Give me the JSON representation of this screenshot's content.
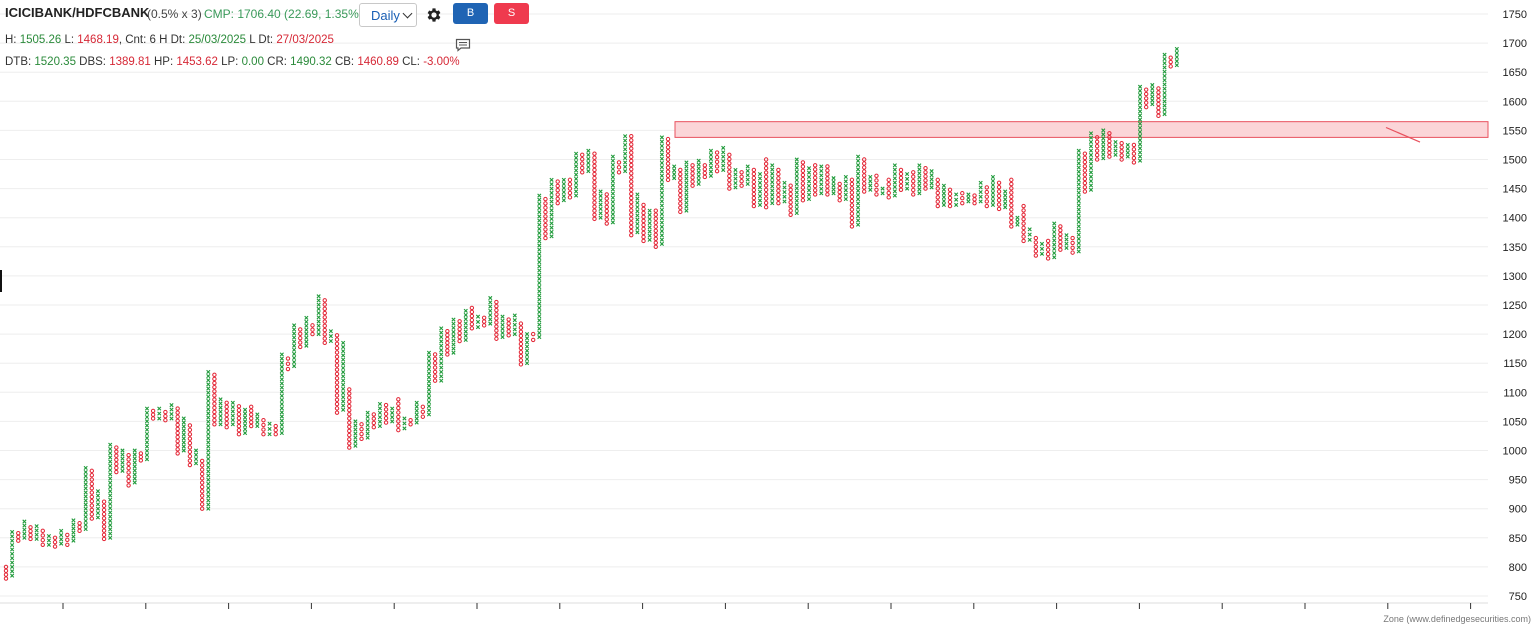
{
  "header": {
    "symbol": "ICICIBANK/HDFCBANK",
    "box": "(0.5% x 3)",
    "cmp": "CMP: 1706.40 (22.69, 1.35%)",
    "timeframe": "Daily",
    "buy_label": "B",
    "sell_label": "S"
  },
  "stats_line1": [
    {
      "text": "H: ",
      "c": "k"
    },
    {
      "text": "1505.26",
      "c": "g"
    },
    {
      "text": " L: ",
      "c": "k"
    },
    {
      "text": "1468.19",
      "c": "r"
    },
    {
      "text": ", Cnt: 6 H Dt: ",
      "c": "k"
    },
    {
      "text": "25/03/2025",
      "c": "g"
    },
    {
      "text": " L Dt: ",
      "c": "k"
    },
    {
      "text": "27/03/2025",
      "c": "r"
    }
  ],
  "stats_line2": [
    {
      "text": "DTB: ",
      "c": "k"
    },
    {
      "text": "1520.35",
      "c": "g"
    },
    {
      "text": " DBS: ",
      "c": "k"
    },
    {
      "text": "1389.81",
      "c": "r"
    },
    {
      "text": " HP: ",
      "c": "k"
    },
    {
      "text": "1453.62",
      "c": "r"
    },
    {
      "text": " LP: ",
      "c": "k"
    },
    {
      "text": "0.00",
      "c": "g"
    },
    {
      "text": " CR: ",
      "c": "k"
    },
    {
      "text": "1490.32",
      "c": "g"
    },
    {
      "text": " CB: ",
      "c": "k"
    },
    {
      "text": "1460.89",
      "c": "r"
    },
    {
      "text": " CL: ",
      "c": "k"
    },
    {
      "text": "-3.00%",
      "c": "r"
    }
  ],
  "credit": "Zone (www.definedgesecurities.com)",
  "colors": {
    "x": "#1f9a3a",
    "o": "#e32636",
    "zone_fill": "#fbd5d8",
    "zone_stroke": "#e8515e",
    "grid": "#eeeeee"
  },
  "icons": [
    "gear-icon",
    "comment-icon",
    "chevron-down-icon"
  ],
  "chart_data": {
    "type": "point-and-figure",
    "y_range": [
      750,
      1750
    ],
    "y_ticks": [
      750,
      800,
      850,
      900,
      950,
      1000,
      1050,
      1100,
      1150,
      1200,
      1250,
      1300,
      1350,
      1400,
      1450,
      1500,
      1550,
      1600,
      1650,
      1700,
      1750
    ],
    "zone": {
      "low": 1538,
      "high": 1565
    },
    "columns": [
      {
        "t": "O",
        "h": 800,
        "l": 780
      },
      {
        "t": "X",
        "h": 860,
        "l": 785
      },
      {
        "t": "O",
        "h": 858,
        "l": 845
      },
      {
        "t": "X",
        "h": 878,
        "l": 850
      },
      {
        "t": "O",
        "h": 868,
        "l": 848
      },
      {
        "t": "X",
        "h": 870,
        "l": 848
      },
      {
        "t": "O",
        "h": 862,
        "l": 838
      },
      {
        "t": "X",
        "h": 853,
        "l": 838
      },
      {
        "t": "O",
        "h": 850,
        "l": 835
      },
      {
        "t": "X",
        "h": 862,
        "l": 840
      },
      {
        "t": "O",
        "h": 855,
        "l": 838
      },
      {
        "t": "X",
        "h": 880,
        "l": 845
      },
      {
        "t": "O",
        "h": 875,
        "l": 862
      },
      {
        "t": "X",
        "h": 970,
        "l": 865
      },
      {
        "t": "O",
        "h": 965,
        "l": 883
      },
      {
        "t": "X",
        "h": 930,
        "l": 885
      },
      {
        "t": "O",
        "h": 912,
        "l": 848
      },
      {
        "t": "X",
        "h": 1010,
        "l": 850
      },
      {
        "t": "O",
        "h": 1005,
        "l": 963
      },
      {
        "t": "X",
        "h": 1000,
        "l": 965
      },
      {
        "t": "O",
        "h": 992,
        "l": 940
      },
      {
        "t": "X",
        "h": 1000,
        "l": 945
      },
      {
        "t": "O",
        "h": 995,
        "l": 983
      },
      {
        "t": "X",
        "h": 1072,
        "l": 985
      },
      {
        "t": "O",
        "h": 1068,
        "l": 1055
      },
      {
        "t": "X",
        "h": 1072,
        "l": 1055
      },
      {
        "t": "O",
        "h": 1066,
        "l": 1052
      },
      {
        "t": "X",
        "h": 1078,
        "l": 1055
      },
      {
        "t": "O",
        "h": 1072,
        "l": 995
      },
      {
        "t": "X",
        "h": 1055,
        "l": 1000
      },
      {
        "t": "O",
        "h": 1043,
        "l": 975
      },
      {
        "t": "X",
        "h": 1000,
        "l": 978
      },
      {
        "t": "O",
        "h": 982,
        "l": 900
      },
      {
        "t": "X",
        "h": 1135,
        "l": 900
      },
      {
        "t": "O",
        "h": 1130,
        "l": 1045
      },
      {
        "t": "X",
        "h": 1088,
        "l": 1045
      },
      {
        "t": "O",
        "h": 1082,
        "l": 1040
      },
      {
        "t": "X",
        "h": 1082,
        "l": 1045
      },
      {
        "t": "O",
        "h": 1076,
        "l": 1028
      },
      {
        "t": "X",
        "h": 1070,
        "l": 1030
      },
      {
        "t": "O",
        "h": 1075,
        "l": 1042
      },
      {
        "t": "X",
        "h": 1062,
        "l": 1042
      },
      {
        "t": "O",
        "h": 1052,
        "l": 1028
      },
      {
        "t": "X",
        "h": 1046,
        "l": 1028
      },
      {
        "t": "O",
        "h": 1042,
        "l": 1028
      },
      {
        "t": "X",
        "h": 1165,
        "l": 1030
      },
      {
        "t": "O",
        "h": 1158,
        "l": 1140
      },
      {
        "t": "X",
        "h": 1215,
        "l": 1145
      },
      {
        "t": "O",
        "h": 1208,
        "l": 1178
      },
      {
        "t": "X",
        "h": 1228,
        "l": 1180
      },
      {
        "t": "O",
        "h": 1215,
        "l": 1200
      },
      {
        "t": "X",
        "h": 1265,
        "l": 1200
      },
      {
        "t": "O",
        "h": 1258,
        "l": 1185
      },
      {
        "t": "X",
        "h": 1205,
        "l": 1188
      },
      {
        "t": "O",
        "h": 1198,
        "l": 1065
      },
      {
        "t": "X",
        "h": 1185,
        "l": 1070
      },
      {
        "t": "O",
        "h": 1105,
        "l": 1005
      },
      {
        "t": "X",
        "h": 1050,
        "l": 1008
      },
      {
        "t": "O",
        "h": 1045,
        "l": 1020
      },
      {
        "t": "X",
        "h": 1065,
        "l": 1022
      },
      {
        "t": "O",
        "h": 1062,
        "l": 1040
      },
      {
        "t": "X",
        "h": 1080,
        "l": 1042
      },
      {
        "t": "O",
        "h": 1078,
        "l": 1048
      },
      {
        "t": "X",
        "h": 1072,
        "l": 1050
      },
      {
        "t": "O",
        "h": 1088,
        "l": 1035
      },
      {
        "t": "X",
        "h": 1055,
        "l": 1038
      },
      {
        "t": "O",
        "h": 1052,
        "l": 1045
      },
      {
        "t": "X",
        "h": 1082,
        "l": 1048
      },
      {
        "t": "O",
        "h": 1075,
        "l": 1058
      },
      {
        "t": "X",
        "h": 1168,
        "l": 1062
      },
      {
        "t": "O",
        "h": 1165,
        "l": 1120
      },
      {
        "t": "X",
        "h": 1210,
        "l": 1120
      },
      {
        "t": "O",
        "h": 1205,
        "l": 1165
      },
      {
        "t": "X",
        "h": 1225,
        "l": 1168
      },
      {
        "t": "O",
        "h": 1222,
        "l": 1188
      },
      {
        "t": "X",
        "h": 1240,
        "l": 1190
      },
      {
        "t": "O",
        "h": 1245,
        "l": 1210
      },
      {
        "t": "X",
        "h": 1230,
        "l": 1212
      },
      {
        "t": "O",
        "h": 1228,
        "l": 1215
      },
      {
        "t": "X",
        "h": 1262,
        "l": 1218
      },
      {
        "t": "O",
        "h": 1255,
        "l": 1192
      },
      {
        "t": "X",
        "h": 1230,
        "l": 1195
      },
      {
        "t": "O",
        "h": 1225,
        "l": 1198
      },
      {
        "t": "X",
        "h": 1232,
        "l": 1200
      },
      {
        "t": "O",
        "h": 1218,
        "l": 1148
      },
      {
        "t": "X",
        "h": 1200,
        "l": 1150
      },
      {
        "t": "O",
        "h": 1200,
        "l": 1190
      },
      {
        "t": "X",
        "h": 1438,
        "l": 1195
      },
      {
        "t": "O",
        "h": 1432,
        "l": 1365
      },
      {
        "t": "X",
        "h": 1465,
        "l": 1368
      },
      {
        "t": "O",
        "h": 1462,
        "l": 1425
      },
      {
        "t": "X",
        "h": 1465,
        "l": 1430
      },
      {
        "t": "O",
        "h": 1465,
        "l": 1435
      },
      {
        "t": "X",
        "h": 1510,
        "l": 1438
      },
      {
        "t": "O",
        "h": 1508,
        "l": 1478
      },
      {
        "t": "X",
        "h": 1515,
        "l": 1480
      },
      {
        "t": "O",
        "h": 1510,
        "l": 1398
      },
      {
        "t": "X",
        "h": 1445,
        "l": 1400
      },
      {
        "t": "O",
        "h": 1440,
        "l": 1390
      },
      {
        "t": "X",
        "h": 1505,
        "l": 1392
      },
      {
        "t": "O",
        "h": 1495,
        "l": 1478
      },
      {
        "t": "X",
        "h": 1540,
        "l": 1480
      },
      {
        "t": "O",
        "h": 1540,
        "l": 1370
      },
      {
        "t": "X",
        "h": 1440,
        "l": 1375
      },
      {
        "t": "O",
        "h": 1422,
        "l": 1360
      },
      {
        "t": "X",
        "h": 1412,
        "l": 1362
      },
      {
        "t": "O",
        "h": 1412,
        "l": 1350
      },
      {
        "t": "X",
        "h": 1538,
        "l": 1355
      },
      {
        "t": "O",
        "h": 1535,
        "l": 1465
      },
      {
        "t": "X",
        "h": 1488,
        "l": 1468
      },
      {
        "t": "O",
        "h": 1482,
        "l": 1410
      },
      {
        "t": "X",
        "h": 1495,
        "l": 1412
      },
      {
        "t": "O",
        "h": 1490,
        "l": 1455
      },
      {
        "t": "X",
        "h": 1498,
        "l": 1458
      },
      {
        "t": "O",
        "h": 1490,
        "l": 1470
      },
      {
        "t": "X",
        "h": 1515,
        "l": 1472
      },
      {
        "t": "O",
        "h": 1512,
        "l": 1480
      },
      {
        "t": "X",
        "h": 1520,
        "l": 1482
      },
      {
        "t": "O",
        "h": 1508,
        "l": 1450
      },
      {
        "t": "X",
        "h": 1482,
        "l": 1452
      },
      {
        "t": "O",
        "h": 1478,
        "l": 1455
      },
      {
        "t": "X",
        "h": 1488,
        "l": 1458
      },
      {
        "t": "O",
        "h": 1482,
        "l": 1420
      },
      {
        "t": "X",
        "h": 1475,
        "l": 1422
      },
      {
        "t": "O",
        "h": 1500,
        "l": 1418
      },
      {
        "t": "X",
        "h": 1490,
        "l": 1425
      },
      {
        "t": "O",
        "h": 1482,
        "l": 1425
      },
      {
        "t": "X",
        "h": 1460,
        "l": 1428
      },
      {
        "t": "O",
        "h": 1455,
        "l": 1405
      },
      {
        "t": "X",
        "h": 1500,
        "l": 1408
      },
      {
        "t": "O",
        "h": 1495,
        "l": 1430
      },
      {
        "t": "X",
        "h": 1485,
        "l": 1432
      },
      {
        "t": "O",
        "h": 1490,
        "l": 1440
      },
      {
        "t": "X",
        "h": 1488,
        "l": 1442
      },
      {
        "t": "O",
        "h": 1488,
        "l": 1440
      },
      {
        "t": "X",
        "h": 1468,
        "l": 1442
      },
      {
        "t": "O",
        "h": 1458,
        "l": 1430
      },
      {
        "t": "X",
        "h": 1470,
        "l": 1432
      },
      {
        "t": "O",
        "h": 1465,
        "l": 1385
      },
      {
        "t": "X",
        "h": 1505,
        "l": 1388
      },
      {
        "t": "O",
        "h": 1500,
        "l": 1445
      },
      {
        "t": "X",
        "h": 1470,
        "l": 1448
      },
      {
        "t": "O",
        "h": 1472,
        "l": 1440
      },
      {
        "t": "X",
        "h": 1450,
        "l": 1442
      },
      {
        "t": "O",
        "h": 1465,
        "l": 1435
      },
      {
        "t": "X",
        "h": 1490,
        "l": 1438
      },
      {
        "t": "O",
        "h": 1482,
        "l": 1448
      },
      {
        "t": "X",
        "h": 1475,
        "l": 1450
      },
      {
        "t": "O",
        "h": 1478,
        "l": 1440
      },
      {
        "t": "X",
        "h": 1490,
        "l": 1442
      },
      {
        "t": "O",
        "h": 1485,
        "l": 1450
      },
      {
        "t": "X",
        "h": 1480,
        "l": 1452
      },
      {
        "t": "O",
        "h": 1465,
        "l": 1420
      },
      {
        "t": "X",
        "h": 1455,
        "l": 1422
      },
      {
        "t": "O",
        "h": 1448,
        "l": 1420
      },
      {
        "t": "X",
        "h": 1440,
        "l": 1422
      },
      {
        "t": "O",
        "h": 1442,
        "l": 1425
      },
      {
        "t": "X",
        "h": 1440,
        "l": 1428
      },
      {
        "t": "O",
        "h": 1438,
        "l": 1425
      },
      {
        "t": "X",
        "h": 1460,
        "l": 1428
      },
      {
        "t": "O",
        "h": 1452,
        "l": 1420
      },
      {
        "t": "X",
        "h": 1470,
        "l": 1422
      },
      {
        "t": "O",
        "h": 1460,
        "l": 1415
      },
      {
        "t": "X",
        "h": 1445,
        "l": 1418
      },
      {
        "t": "O",
        "h": 1465,
        "l": 1385
      },
      {
        "t": "X",
        "h": 1400,
        "l": 1388
      },
      {
        "t": "O",
        "h": 1420,
        "l": 1360
      },
      {
        "t": "X",
        "h": 1380,
        "l": 1362
      },
      {
        "t": "O",
        "h": 1365,
        "l": 1335
      },
      {
        "t": "X",
        "h": 1355,
        "l": 1338
      },
      {
        "t": "O",
        "h": 1360,
        "l": 1330
      },
      {
        "t": "X",
        "h": 1390,
        "l": 1332
      },
      {
        "t": "O",
        "h": 1385,
        "l": 1345
      },
      {
        "t": "X",
        "h": 1370,
        "l": 1348
      },
      {
        "t": "O",
        "h": 1365,
        "l": 1340
      },
      {
        "t": "X",
        "h": 1515,
        "l": 1342
      },
      {
        "t": "O",
        "h": 1510,
        "l": 1445
      },
      {
        "t": "X",
        "h": 1545,
        "l": 1448
      },
      {
        "t": "O",
        "h": 1538,
        "l": 1500
      },
      {
        "t": "X",
        "h": 1550,
        "l": 1502
      },
      {
        "t": "O",
        "h": 1545,
        "l": 1505
      },
      {
        "t": "X",
        "h": 1530,
        "l": 1508
      },
      {
        "t": "O",
        "h": 1528,
        "l": 1500
      },
      {
        "t": "X",
        "h": 1525,
        "l": 1505
      },
      {
        "t": "O",
        "h": 1525,
        "l": 1495
      },
      {
        "t": "X",
        "h": 1625,
        "l": 1498
      },
      {
        "t": "O",
        "h": 1620,
        "l": 1590
      },
      {
        "t": "X",
        "h": 1628,
        "l": 1595
      },
      {
        "t": "O",
        "h": 1622,
        "l": 1575
      },
      {
        "t": "X",
        "h": 1680,
        "l": 1578
      },
      {
        "t": "O",
        "h": 1675,
        "l": 1660
      },
      {
        "t": "X",
        "h": 1690,
        "l": 1662
      }
    ]
  }
}
